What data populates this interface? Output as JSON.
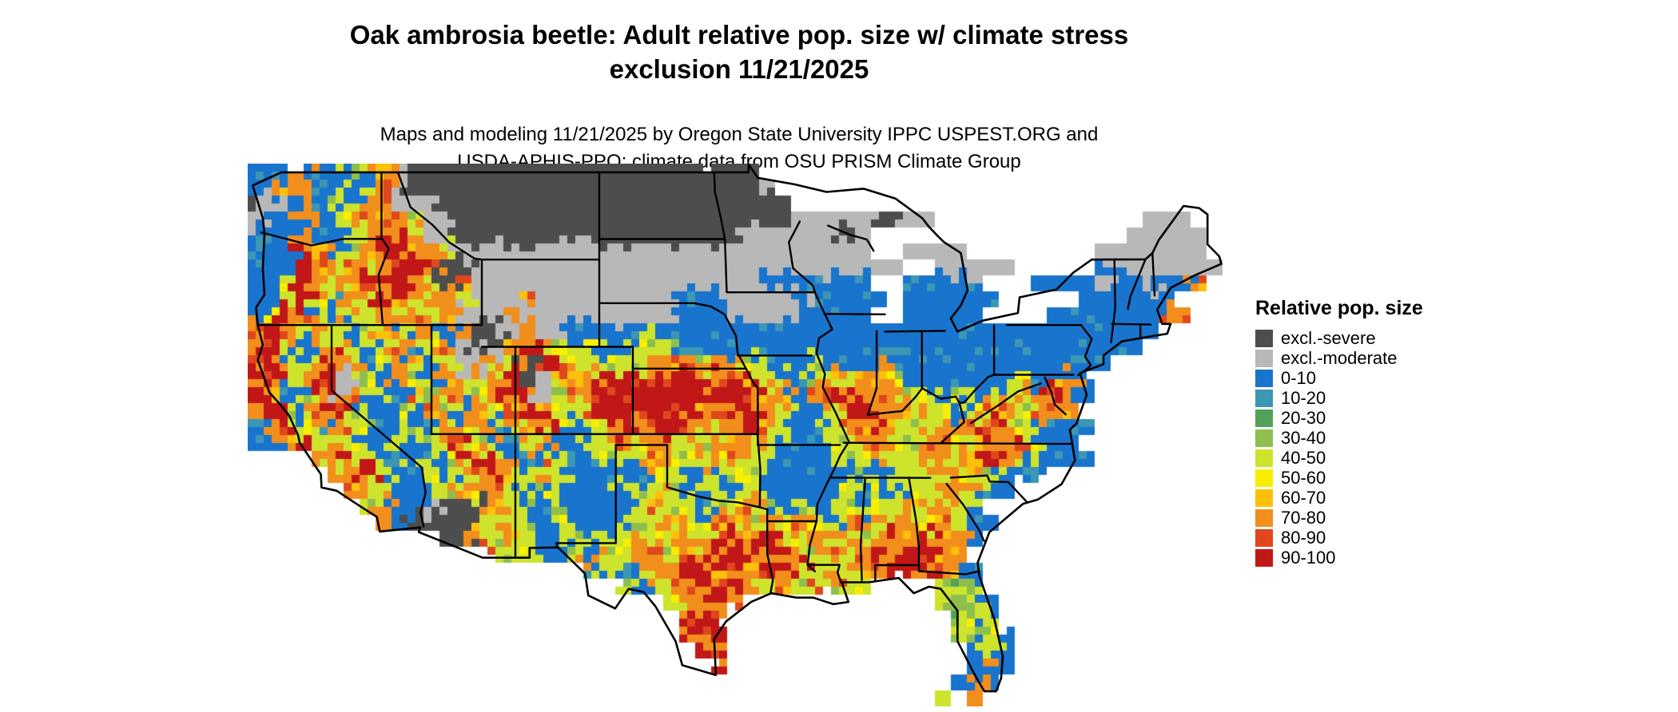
{
  "title": {
    "line1": "Oak ambrosia beetle: Adult relative pop. size w/ climate stress",
    "line2": "exclusion 11/21/2025"
  },
  "subtitle": {
    "line1": "Maps and modeling 11/21/2025 by Oregon State University IPPC USPEST.ORG and",
    "line2": "USDA-APHIS-PPQ; climate data from OSU PRISM Climate Group"
  },
  "legend": {
    "title": "Relative pop. size",
    "items": [
      {
        "label": "excl.-severe",
        "key": "S",
        "color": "#4d4d4d"
      },
      {
        "label": "excl.-moderate",
        "key": "M",
        "color": "#b8b8b8"
      },
      {
        "label": "0-10",
        "key": "B",
        "color": "#1874cd"
      },
      {
        "label": "10-20",
        "key": "T",
        "color": "#3b97b3"
      },
      {
        "label": "20-30",
        "key": "G",
        "color": "#53a158"
      },
      {
        "label": "30-40",
        "key": "g",
        "color": "#8ebf4e"
      },
      {
        "label": "40-50",
        "key": "y",
        "color": "#cde32c"
      },
      {
        "label": "50-60",
        "key": "Y",
        "color": "#f8ef00"
      },
      {
        "label": "60-70",
        "key": "O",
        "color": "#fec10b"
      },
      {
        "label": "70-80",
        "key": "o",
        "color": "#f28e1c"
      },
      {
        "label": "80-90",
        "key": "R",
        "color": "#e0471c"
      },
      {
        "label": "90-100",
        "key": "r",
        "color": "#c11718"
      }
    ]
  },
  "map": {
    "cols": 61,
    "cell": 20,
    "rows": [
      "BBBoBByBoMSSSSSSSSSSSSSSSSSSSSSS",
      "BBooBBByoMSSSSSSSSSSSSSSSSSSSSSSM",
      "SMBoByBooMMMSSSSSSSSSSSSSSSSSSSSSS",
      "MBBoBByoooyMMSSSSSSSSSSSSSSSSSSSSSMMMMMSSMM.............MMM",
      "BBBoBByyoroMMSSSSSSSSSSSSSSSSSSMMMMMMSM................MMMMM",
      "BBBroByorrooyMMMMMMMMMMMMMMMMMMMMMMMMMM..MMMM........MMMMMMM",
      "BBBroyoyorroSSMMMMMMMMMMMMMMMMMMMMMMMMMMM..MMMMM.....BMMMMMMMMo",
      "BByroyororoySoMMMMMMMMMMMMMMMMMMBBBBBBB..BBBBB...BBBBMBBMBBo",
      "BByryBoyroyooyMMMoMMMMMMMMMBBBMMMMMBBBBB.BBBBBB.....BBBBBB",
      "ByroByoyoyoyoMMMoMMMMMMMMMMBBBMMMMBBBBB..BBBBB....BBBBBBBoo",
      "oroyoyByoByoBoSSMoMMBBBBByBBBBBBBBBBBBBBBBBBBBBBBBBBBBBBB",
      "oryByoyByoByoMSMoroyyyBByyyBBBBBBBBBBBBBBBBBBBBBBBBBBBBB",
      "roByoroByBoByMoyoSroyyyyyoooyooyBBByBBBoBBBBBBBBBBBBBB",
      "oryBorMyBoyBoyMorSMooorrrrrrorroyyByoyooyBBBBBBByBooB",
      "roByrMoByBoyooyoroMyorrrrrrrrrrrooBooroooyyByBByooroB",
      "oryBoryBByBoyBoyoroyyorrrrrroorroyBByoroooyyByooyooo",
      "BoryBoryBByBoyoByoryByororrooyoroyBByooroyoyooroyBBBB",
      "BBoryoyBByByoryoByoBByyoyoyoyoooyBBByyooyyooyooroyBB",
      "....oyryBByByoroyBoyBByByoyyoyoyyBBBByyoyyoyooroyBBBB",
      ".....ooryBByByoroyoyBBBBByyByByyBBBBBByByyyoyoyBBB",
      "......ooyBBByoyoyByBBBByyoyByyByBBBBByByByyyoyBB",
      ".......yoBBMSSSoyyByBBBByoyyByyoyByBByByyoyoyB",
      "........oBSSSSoyoyByBBBByyoyyooyoyoyByoyooyoyBB",
      "............SSoyoyBByByyoyooyororoyoyoyororooB",
      "...............oyyBByoyyooyoorrroroyoyororroo",
      ".....................ByByoorrorororyoyoororooB",
      ".......................yByoororoyoyoyoy....ygB",
      "..........................yooro............ygyB",
      "...........................oro..............gyB",
      "...........................ror..............ygyB",
      "............................ro...............ByB",
      ".............................r...............BoB",
      "............................................BoB",
      "...........................................y.o"
    ]
  }
}
